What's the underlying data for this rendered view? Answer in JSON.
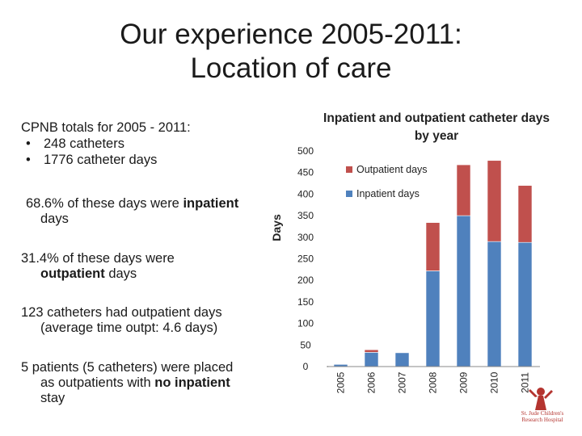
{
  "title": {
    "line1": "Our experience 2005-2011:",
    "line2": "Location of care"
  },
  "summary": {
    "heading": "CPNB totals for 2005 - 2011:",
    "bullets": [
      "248 catheters",
      "1776 catheter days"
    ]
  },
  "paragraphs": {
    "p1_a": "68.6% of these days were ",
    "p1_b": "inpatient",
    "p1_c": "days",
    "p2_a": "31.4% of these days were",
    "p2_b": "outpatient",
    "p2_c": " days",
    "p3_a": "123 catheters had outpatient days",
    "p3_b": "(average time outpt: 4.6 days)",
    "p4_a": "5 patients (5 catheters) were placed",
    "p4_b": "as outpatients with ",
    "p4_c": "no inpatient",
    "p4_d": "stay"
  },
  "chart_data": {
    "type": "bar",
    "stacked": true,
    "title": "Inpatient and outpatient catheter days by year",
    "ylabel": "Days",
    "xlabel": "",
    "ylim": [
      0,
      500
    ],
    "yticks": [
      0,
      50,
      100,
      150,
      200,
      250,
      300,
      350,
      400,
      450,
      500
    ],
    "categories": [
      "2005",
      "2006",
      "2007",
      "2008",
      "2009",
      "2010",
      "2011"
    ],
    "series": [
      {
        "name": "Inpatient days",
        "color": "#4f81bd",
        "values": [
          5,
          33,
          32,
          222,
          350,
          290,
          288
        ]
      },
      {
        "name": "Outpatient days",
        "color": "#c0504d",
        "values": [
          0,
          6,
          0,
          112,
          118,
          188,
          132
        ]
      }
    ],
    "legend": {
      "placement": "top-right",
      "order": [
        "Outpatient days",
        "Inpatient days"
      ]
    },
    "grid": false
  },
  "colors": {
    "inpatient": "#4f81bd",
    "outpatient": "#c0504d",
    "logo": "#b4342f"
  },
  "logo": {
    "icon": "st-jude-logo-icon",
    "line1": "St. Jude Children's",
    "line2": "Research Hospital"
  }
}
